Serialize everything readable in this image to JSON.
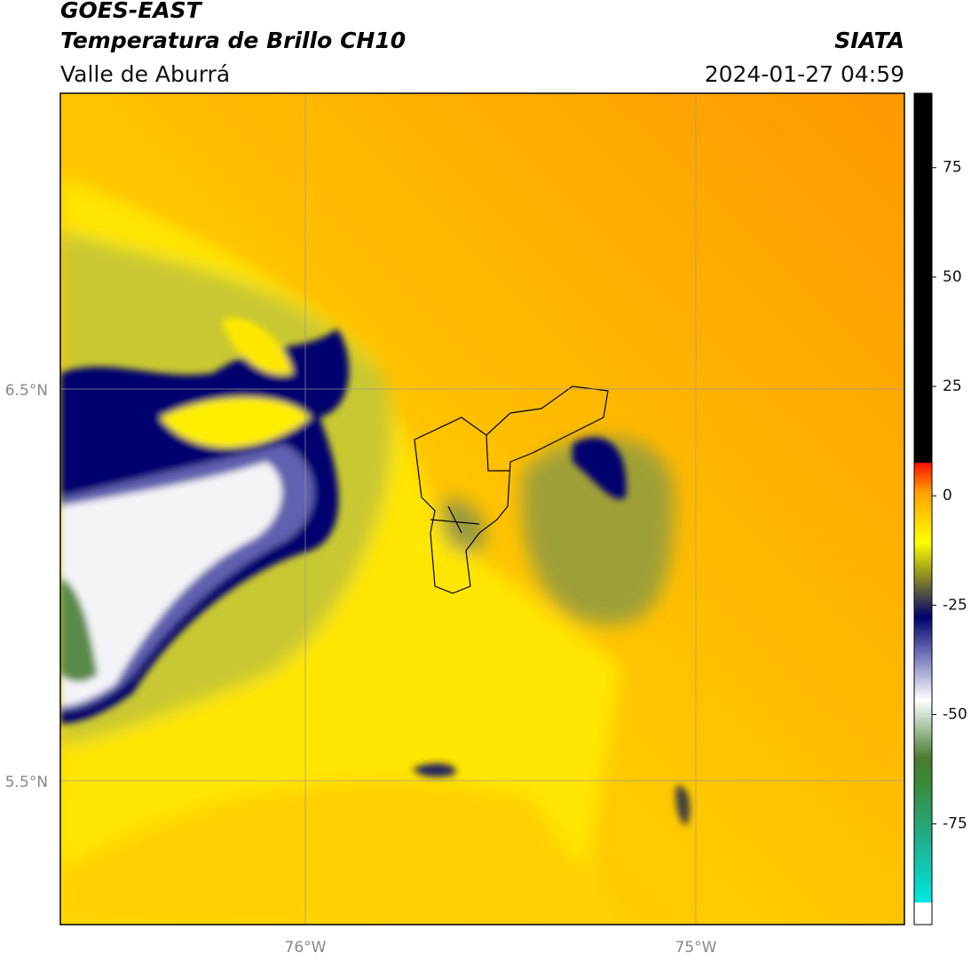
{
  "header": {
    "title": "GOES-EAST",
    "subtitle": "Temperatura de Brillo CH10",
    "region": "Valle de Aburrá",
    "source": "SIATA",
    "timestamp": "2024-01-27 04:59"
  },
  "map": {
    "lat_labels": [
      "6.5°N",
      "5.5°N"
    ],
    "lon_labels": [
      "76°W",
      "75°W"
    ]
  },
  "colorbar": {
    "lim": [
      -98,
      92
    ],
    "ticks": [
      75,
      50,
      25,
      0,
      -25,
      -50,
      -75
    ]
  }
}
